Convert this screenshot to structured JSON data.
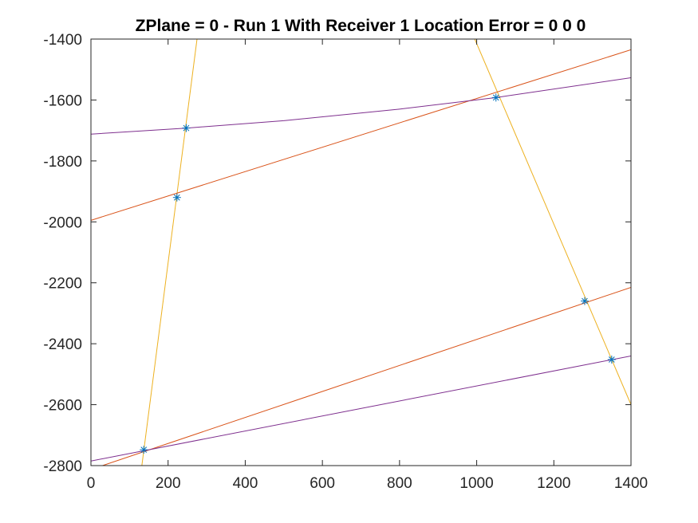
{
  "chart_data": {
    "type": "line",
    "title": "ZPlane = 0 - Run 1 With Receiver 1 Location Error = 0  0  0",
    "xlabel": "",
    "ylabel": "",
    "xlim": [
      0,
      1400
    ],
    "ylim": [
      -2800,
      -1400
    ],
    "x_ticks": [
      "0",
      "200",
      "400",
      "600",
      "800",
      "1000",
      "1200",
      "1400"
    ],
    "y_ticks": [
      "-1400",
      "-1600",
      "-1800",
      "-2000",
      "-2200",
      "-2400",
      "-2600",
      "-2800"
    ],
    "grid": false,
    "series": [
      {
        "color": "#EDB120",
        "points": [
          [
            132,
            -2800
          ],
          [
            275,
            -1400
          ]
        ]
      },
      {
        "color": "#EDB120",
        "points": [
          [
            995,
            -1400
          ],
          [
            1400,
            -2600
          ]
        ]
      },
      {
        "color": "#D95319",
        "points": [
          [
            0,
            -1995
          ],
          [
            1400,
            -1435
          ]
        ]
      },
      {
        "color": "#D95319",
        "points": [
          [
            30,
            -2800
          ],
          [
            1400,
            -2215
          ]
        ]
      },
      {
        "color": "#7E2F8E",
        "points": [
          [
            0,
            -1712
          ],
          [
            250,
            -1692
          ],
          [
            500,
            -1668
          ],
          [
            800,
            -1630
          ],
          [
            1050,
            -1592
          ],
          [
            1400,
            -1527
          ]
        ]
      },
      {
        "color": "#7E2F8E",
        "points": [
          [
            0,
            -2785
          ],
          [
            1400,
            -2440
          ]
        ]
      }
    ],
    "markers": {
      "color": "#0072BD",
      "symbol": "asterisk",
      "points": [
        [
          247,
          -1692
        ],
        [
          223,
          -1920
        ],
        [
          1050,
          -1592
        ],
        [
          1280,
          -2260
        ],
        [
          1350,
          -2452
        ],
        [
          137,
          -2748
        ]
      ]
    }
  }
}
